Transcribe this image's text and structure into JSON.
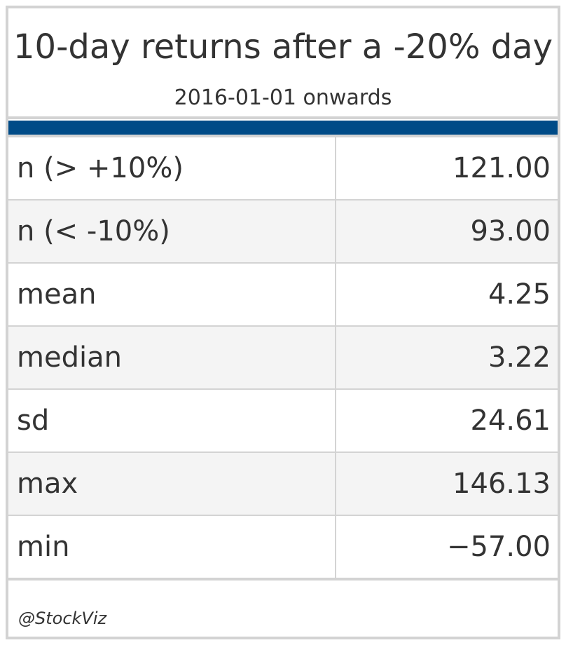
{
  "chart_data": {
    "type": "table",
    "title": "10-day returns after a -20% day",
    "subtitle": "2016-01-01 onwards",
    "columns": [
      "",
      ""
    ],
    "rows": [
      {
        "label": "n (> +10%)",
        "value": "121.00"
      },
      {
        "label": "n (< -10%)",
        "value": "93.00"
      },
      {
        "label": "mean",
        "value": "4.25"
      },
      {
        "label": "median",
        "value": "3.22"
      },
      {
        "label": "sd",
        "value": "24.61"
      },
      {
        "label": "max",
        "value": "146.13"
      },
      {
        "label": "min",
        "value": "−57.00"
      }
    ],
    "source_note": "@StockViz",
    "colors": {
      "header_band": "#004b87",
      "border": "#d3d3d3",
      "stripe": "#f4f4f4",
      "text": "#333333"
    }
  }
}
